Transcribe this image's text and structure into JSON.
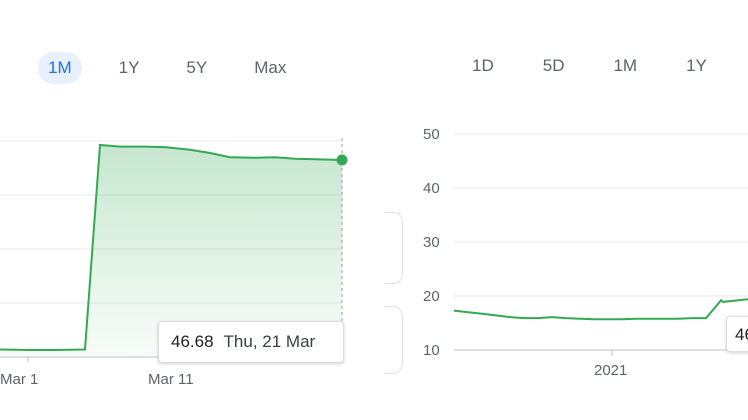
{
  "left_panel": {
    "ranges": [
      "1M",
      "1Y",
      "5Y",
      "Max"
    ],
    "active_range": "1M",
    "x_ticks": [
      "Mar 1",
      "Mar 11"
    ],
    "tooltip": {
      "value": "46.68",
      "date": "Thu, 21 Mar"
    },
    "line_color": "#34a853"
  },
  "right_panel": {
    "ranges": [
      "1D",
      "5D",
      "1M",
      "1Y"
    ],
    "y_ticks": [
      "50",
      "40",
      "30",
      "20",
      "10"
    ],
    "x_ticks": [
      "2021"
    ],
    "tooltip_fragment": "46",
    "line_color": "#34a853"
  },
  "chart_data": [
    {
      "type": "area",
      "title": "",
      "range": "1M",
      "x": [
        "",
        "",
        "",
        "",
        "",
        "",
        "",
        "Mar 11",
        "",
        "",
        "",
        "",
        "",
        "",
        "",
        "Thu, 21 Mar"
      ],
      "series": [
        {
          "values": [
            11.0,
            10.9,
            10.9,
            11.0,
            49.5,
            49.2,
            49.2,
            49.1,
            48.6,
            48.0,
            47.2,
            47.1,
            47.2,
            46.9,
            46.8,
            46.68
          ]
        }
      ],
      "x_tick_labels": [
        "Mar 1",
        "Mar 11"
      ],
      "last_value": 46.68,
      "last_date": "Thu, 21 Mar"
    },
    {
      "type": "line",
      "title": "",
      "y_ticks": [
        10,
        20,
        30,
        40,
        50
      ],
      "ylim": [
        10,
        50
      ],
      "x_tick_labels": [
        "2021"
      ],
      "series": [
        {
          "values": [
            17.3,
            17.0,
            16.7,
            16.4,
            16.1,
            15.9,
            15.9,
            16.1,
            15.9,
            15.8,
            15.7,
            15.7,
            15.7,
            15.8,
            15.8,
            15.8,
            15.8,
            15.9,
            15.9,
            19.2,
            18.9,
            19.4
          ]
        }
      ]
    }
  ]
}
